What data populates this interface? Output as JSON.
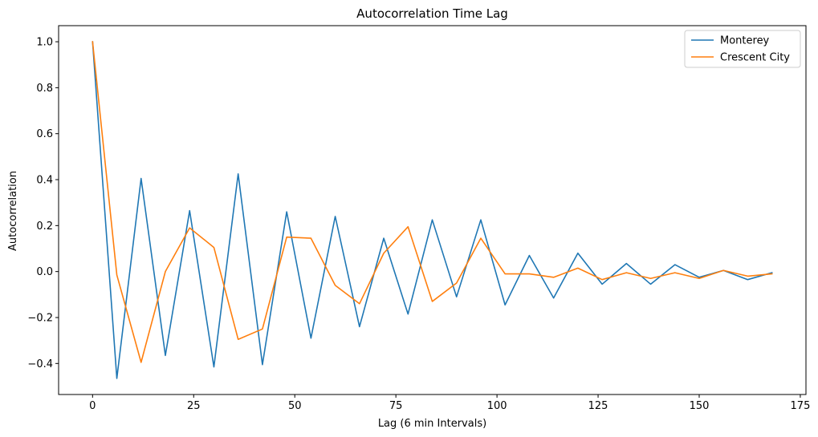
{
  "chart_data": {
    "type": "line",
    "title": "Autocorrelation Time Lag",
    "xlabel": "Lag (6 min Intervals)",
    "ylabel": "Autocorrelation",
    "xlim": [
      -8.4,
      176.4
    ],
    "ylim": [
      -0.535,
      1.07
    ],
    "xticks": [
      0,
      25,
      50,
      75,
      100,
      125,
      150,
      175
    ],
    "yticks": [
      -0.4,
      -0.2,
      0.0,
      0.2,
      0.4,
      0.6,
      0.8,
      1.0
    ],
    "xtick_labels": [
      "0",
      "25",
      "50",
      "75",
      "100",
      "125",
      "150",
      "175"
    ],
    "ytick_labels": [
      "−0.4",
      "−0.2",
      "0.0",
      "0.2",
      "0.4",
      "0.6",
      "0.8",
      "1.0"
    ],
    "grid": false,
    "legend_position": "top-right",
    "x": [
      0,
      6,
      12,
      18,
      24,
      30,
      36,
      42,
      48,
      54,
      60,
      66,
      72,
      78,
      84,
      90,
      96,
      102,
      108,
      114,
      120,
      126,
      132,
      138,
      144,
      150,
      156,
      162,
      168
    ],
    "series": [
      {
        "name": "Monterey",
        "color": "#1f77b4",
        "values": [
          1.0,
          -0.465,
          0.405,
          -0.365,
          0.265,
          -0.415,
          0.425,
          -0.405,
          0.26,
          -0.29,
          0.24,
          -0.24,
          0.145,
          -0.185,
          0.225,
          -0.11,
          0.225,
          -0.145,
          0.07,
          -0.115,
          0.08,
          -0.055,
          0.035,
          -0.055,
          0.03,
          -0.025,
          0.005,
          -0.035,
          -0.005
        ]
      },
      {
        "name": "Crescent City",
        "color": "#ff7f0e",
        "values": [
          1.0,
          -0.015,
          -0.395,
          0.0,
          0.19,
          0.105,
          -0.295,
          -0.25,
          0.15,
          0.145,
          -0.06,
          -0.14,
          0.08,
          0.195,
          -0.13,
          -0.05,
          0.145,
          -0.01,
          -0.01,
          -0.025,
          0.015,
          -0.035,
          -0.005,
          -0.03,
          -0.005,
          -0.03,
          0.005,
          -0.02,
          -0.01
        ]
      }
    ]
  }
}
